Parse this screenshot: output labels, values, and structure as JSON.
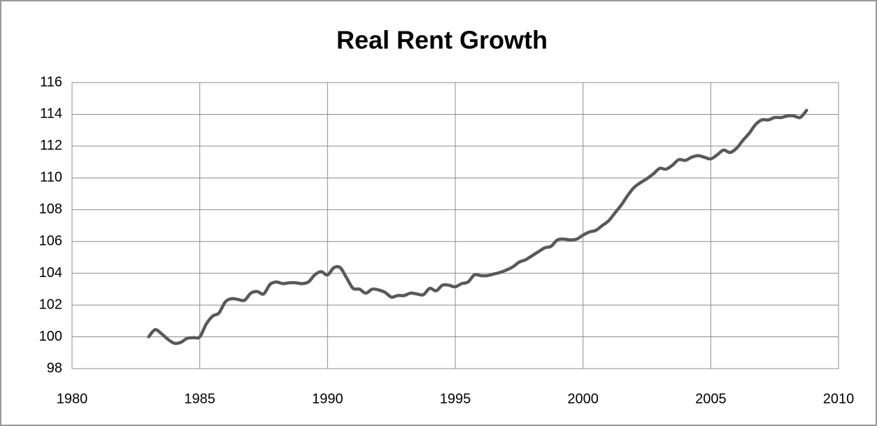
{
  "chart_data": {
    "type": "line",
    "title": "Real Rent Growth",
    "x": [
      1983,
      1983.25,
      1983.5,
      1983.75,
      1984,
      1984.25,
      1984.5,
      1984.75,
      1985,
      1985.25,
      1985.5,
      1985.75,
      1986,
      1986.25,
      1986.5,
      1986.75,
      1987,
      1987.25,
      1987.5,
      1987.75,
      1988,
      1988.25,
      1988.5,
      1988.75,
      1989,
      1989.25,
      1989.5,
      1989.75,
      1990,
      1990.25,
      1990.5,
      1990.75,
      1991,
      1991.25,
      1991.5,
      1991.75,
      1992,
      1992.25,
      1992.5,
      1992.75,
      1993,
      1993.25,
      1993.5,
      1993.75,
      1994,
      1994.25,
      1994.5,
      1994.75,
      1995,
      1995.25,
      1995.5,
      1995.75,
      1996,
      1996.25,
      1996.5,
      1996.75,
      1997,
      1997.25,
      1997.5,
      1997.75,
      1998,
      1998.25,
      1998.5,
      1998.75,
      1999,
      1999.25,
      1999.5,
      1999.75,
      2000,
      2000.25,
      2000.5,
      2000.75,
      2001,
      2001.25,
      2001.5,
      2001.75,
      2002,
      2002.25,
      2002.5,
      2002.75,
      2003,
      2003.25,
      2003.5,
      2003.75,
      2004,
      2004.25,
      2004.5,
      2004.75,
      2005,
      2005.25,
      2005.5,
      2005.75,
      2006,
      2006.25,
      2006.5,
      2006.75,
      2007,
      2007.25,
      2007.5,
      2007.75,
      2008,
      2008.25,
      2008.5,
      2008.75
    ],
    "series": [
      {
        "name": "Real Rent",
        "color": "#595959",
        "values": [
          100.0,
          100.45,
          100.2,
          99.85,
          99.6,
          99.65,
          99.9,
          99.95,
          100.0,
          100.8,
          101.3,
          101.5,
          102.2,
          102.4,
          102.35,
          102.3,
          102.75,
          102.85,
          102.7,
          103.3,
          103.45,
          103.35,
          103.4,
          103.4,
          103.35,
          103.45,
          103.9,
          104.1,
          103.9,
          104.35,
          104.35,
          103.7,
          103.05,
          103.0,
          102.75,
          103.0,
          102.95,
          102.8,
          102.5,
          102.6,
          102.6,
          102.75,
          102.7,
          102.65,
          103.05,
          102.9,
          103.25,
          103.25,
          103.15,
          103.35,
          103.45,
          103.9,
          103.85,
          103.85,
          103.95,
          104.05,
          104.2,
          104.4,
          104.7,
          104.85,
          105.1,
          105.35,
          105.6,
          105.7,
          106.1,
          106.15,
          106.1,
          106.15,
          106.4,
          106.6,
          106.7,
          107.0,
          107.3,
          107.8,
          108.3,
          108.9,
          109.4,
          109.7,
          109.95,
          110.25,
          110.6,
          110.55,
          110.8,
          111.15,
          111.1,
          111.3,
          111.4,
          111.3,
          111.2,
          111.45,
          111.75,
          111.6,
          111.85,
          112.35,
          112.8,
          113.35,
          113.65,
          113.65,
          113.8,
          113.8,
          113.9,
          113.9,
          113.8,
          114.25
        ]
      }
    ],
    "xlim": [
      1980,
      2010
    ],
    "xticks": [
      1980,
      1985,
      1990,
      1995,
      2000,
      2005,
      2010
    ],
    "ylim": [
      98,
      116
    ],
    "yticks": [
      98,
      100,
      102,
      104,
      106,
      108,
      110,
      112,
      114,
      116
    ],
    "grid": true
  }
}
